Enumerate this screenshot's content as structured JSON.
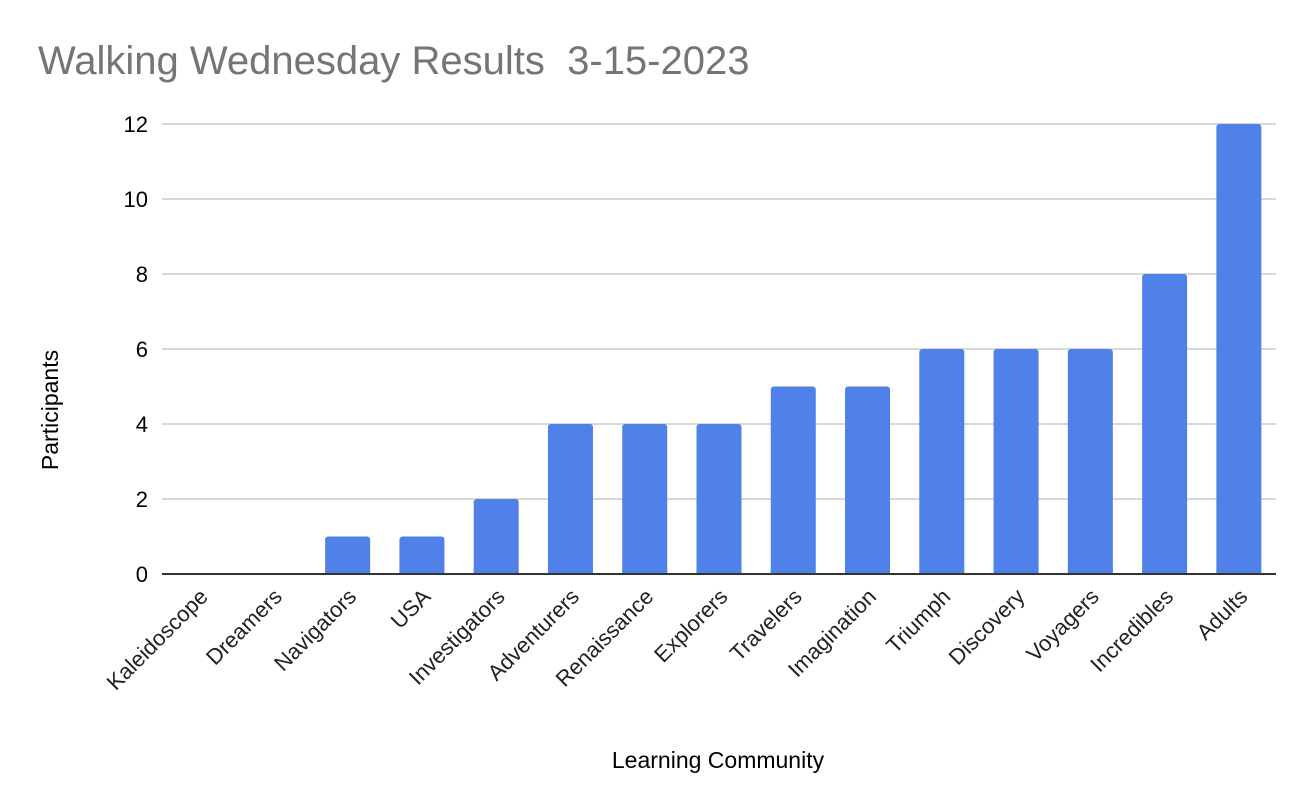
{
  "chart_data": {
    "type": "bar",
    "title": "Walking Wednesday Results  3-15-2023",
    "xlabel": "Learning Community",
    "ylabel": "Participants",
    "categories": [
      "Kaleidoscope",
      "Dreamers",
      "Navigators",
      "USA",
      "Investigators",
      "Adventurers",
      "Renaissance",
      "Explorers",
      "Travelers",
      "Imagination",
      "Triumph",
      "Discovery",
      "Voyagers",
      "Incredibles",
      "Adults"
    ],
    "values": [
      0,
      0,
      1,
      1,
      2,
      4,
      4,
      4,
      5,
      5,
      6,
      6,
      6,
      8,
      12
    ],
    "yticks": [
      0,
      2,
      4,
      6,
      8,
      10,
      12
    ],
    "ylim": [
      0,
      12
    ],
    "grid": true,
    "legend": "none",
    "colors": {
      "bar": "#4f81e9",
      "title": "#757575",
      "grid": "#cccccc",
      "baseline": "#333333"
    }
  }
}
